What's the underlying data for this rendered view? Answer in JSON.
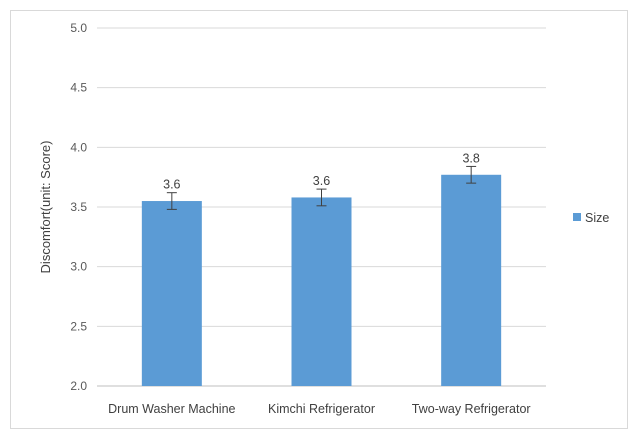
{
  "chart_data": {
    "type": "bar",
    "categories": [
      "Drum Washer Machine",
      "Kimchi Refrigerator",
      "Two-way Refrigerator"
    ],
    "series": [
      {
        "name": "Size",
        "color": "#5b9bd5",
        "values": [
          3.55,
          3.58,
          3.77
        ],
        "data_labels": [
          "3.6",
          "3.6",
          "3.8"
        ],
        "error": [
          0.07,
          0.07,
          0.07
        ]
      }
    ],
    "title": "",
    "xlabel": "",
    "ylabel": "Discomfort(unit: Score)",
    "ylim": [
      2.0,
      5.0
    ],
    "yticks": [
      "2.0",
      "2.5",
      "3.0",
      "3.5",
      "4.0",
      "4.5",
      "5.0"
    ],
    "grid": true,
    "legend_position": "right"
  }
}
